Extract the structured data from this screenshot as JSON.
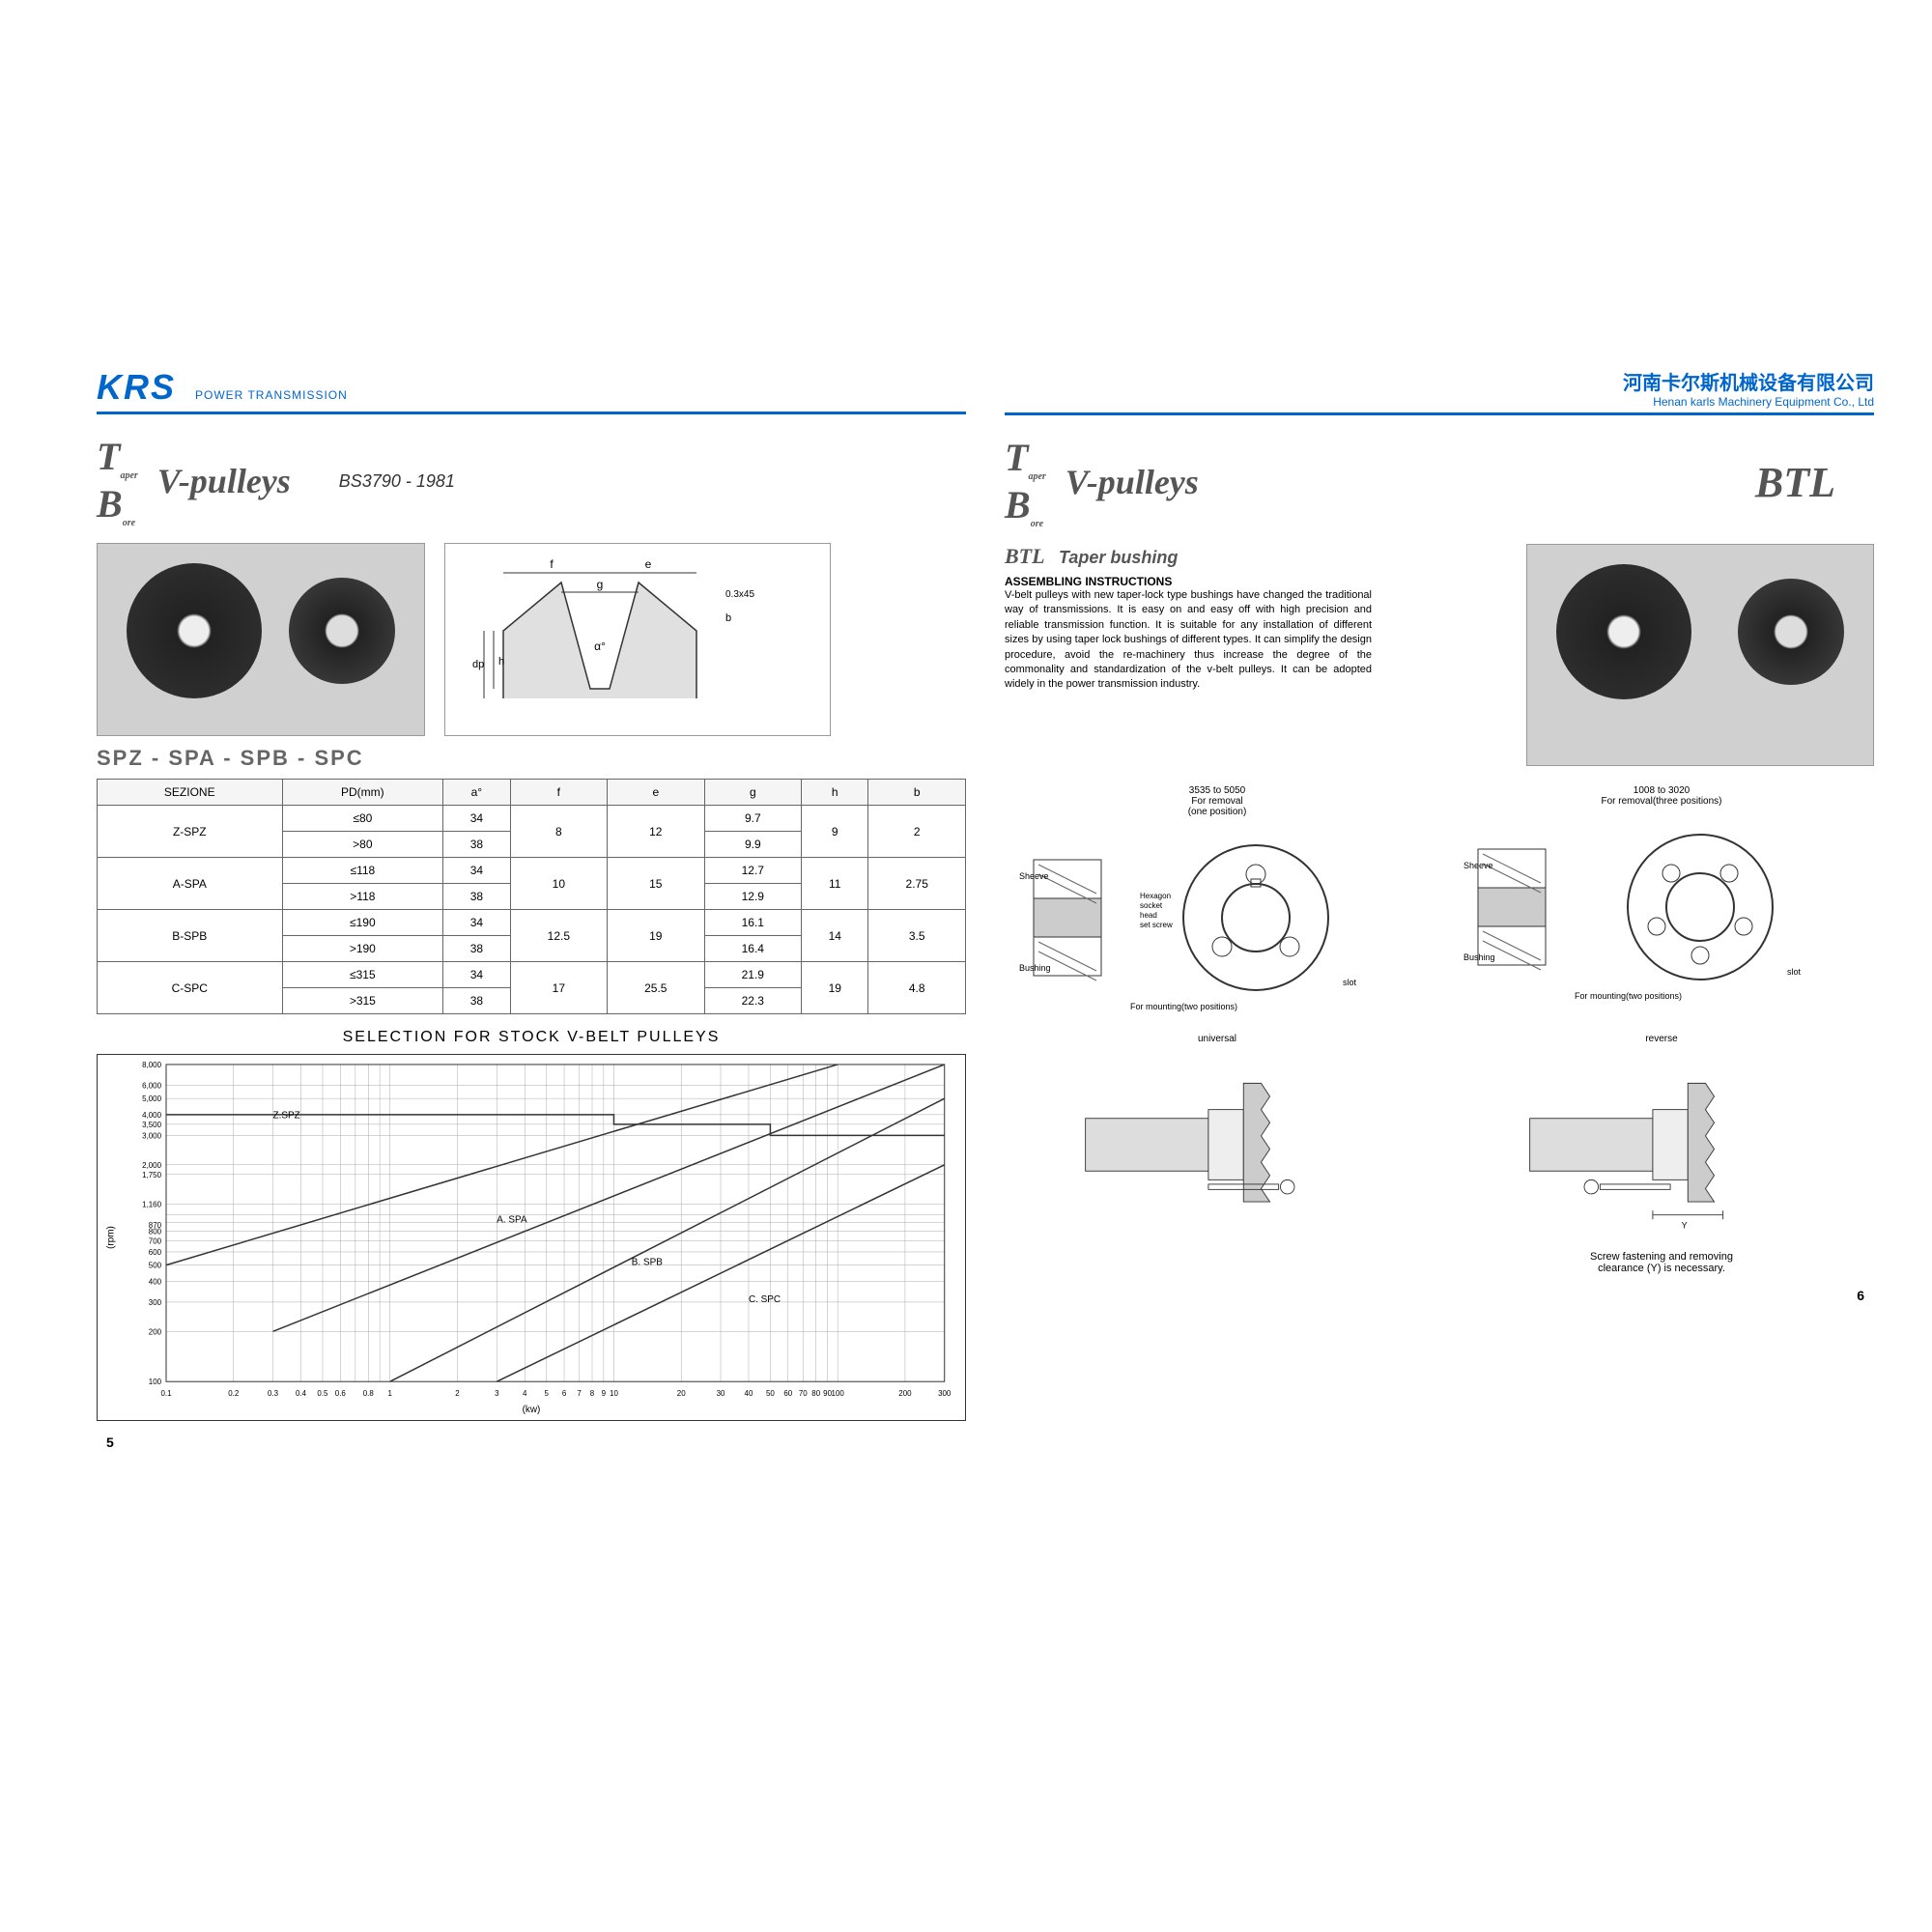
{
  "header": {
    "logo": "KRS",
    "logo_sub": "POWER TRANSMISSION",
    "company_cn": "河南卡尔斯机械设备有限公司",
    "company_en": "Henan karls Machinery Equipment Co., Ltd"
  },
  "left": {
    "tb": "TB",
    "title": "V-pulleys",
    "spec": "BS3790 - 1981",
    "spz_line": "SPZ - SPA - SPB - SPC",
    "table": {
      "headers": [
        "SEZIONE",
        "PD(mm)",
        "a°",
        "f",
        "e",
        "g",
        "h",
        "b"
      ],
      "rows": [
        [
          "Z-SPZ",
          "≤80",
          "34",
          "8",
          "12",
          "9.7",
          "9",
          "2"
        ],
        [
          "",
          ">80",
          "38",
          "",
          "",
          "9.9",
          "",
          ""
        ],
        [
          "A-SPA",
          "≤118",
          "34",
          "10",
          "15",
          "12.7",
          "11",
          "2.75"
        ],
        [
          "",
          ">118",
          "38",
          "",
          "",
          "12.9",
          "",
          ""
        ],
        [
          "B-SPB",
          "≤190",
          "34",
          "12.5",
          "19",
          "16.1",
          "14",
          "3.5"
        ],
        [
          "",
          ">190",
          "38",
          "",
          "",
          "16.4",
          "",
          ""
        ],
        [
          "C-SPC",
          "≤315",
          "34",
          "17",
          "25.5",
          "21.9",
          "19",
          "4.8"
        ],
        [
          "",
          ">315",
          "38",
          "",
          "",
          "22.3",
          "",
          ""
        ]
      ],
      "rowspans": [
        [
          0,
          2
        ],
        [
          2,
          2
        ],
        [
          4,
          2
        ],
        [
          6,
          2
        ]
      ]
    },
    "chart_title": "SELECTION FOR STOCK V-BELT PULLEYS",
    "chart": {
      "xlabel": "(kw)",
      "ylabel": "(rpm)",
      "x_ticks": [
        "0.1",
        "0.2",
        "0.3",
        "0.4",
        "0.5",
        "0.6",
        "0.8",
        "1",
        "2",
        "3",
        "4",
        "5",
        "6",
        "7",
        "8",
        "9",
        "10",
        "20",
        "30",
        "40",
        "50",
        "60",
        "70",
        "80",
        "90",
        "100",
        "200",
        "300"
      ],
      "y_ticks": [
        "100",
        "200",
        "300",
        "400",
        "500",
        "600",
        "700",
        "800",
        "870",
        "1,160",
        "1,750",
        "2,000",
        "3,000",
        "3,500",
        "4,000",
        "5,000",
        "6,000",
        "8,000"
      ],
      "regions": [
        "Z.SPZ",
        "A. SPA",
        "B. SPB",
        "C. SPC"
      ],
      "grid_color": "#888",
      "line_color": "#333"
    },
    "page_num": "5",
    "profile_labels": [
      "f",
      "e",
      "g",
      "0.3x45",
      "b",
      "dp",
      "h",
      "α°"
    ]
  },
  "right": {
    "tb": "TB",
    "title": "V-pulleys",
    "btl": "BTL",
    "btl_sub": "BTL",
    "taper": "Taper bushing",
    "assem_title": "ASSEMBLING INSTRUCTIONS",
    "assem_body": "V-belt pulleys with new taper-lock type bushings have changed the traditional way of transmissions. It is easy on and easy off with high precision and reliable transmission function. It is suitable for any installation of different sizes by using taper lock bushings of different types. It can simplify the design procedure, avoid the re-machinery thus increase the degree of the commonality and standardization of the v-belt pulleys. It can be adopted widely in the power transmission industry.",
    "diag1": {
      "top": "3535 to 5050\nFor removal\n(one position)",
      "labels": [
        "Sheeve",
        "Hexagon socket head set screw",
        "Bushing",
        "slot",
        "For mounting(two positions)"
      ]
    },
    "diag2": {
      "top": "1008 to 3020\nFor removal(three positions)",
      "labels": [
        "Sheeve",
        "Bushing",
        "slot",
        "For mounting(two positions)"
      ]
    },
    "universal": "universal",
    "reverse": "reverse",
    "bottom_note": "Screw fastening and removing\nclearance (Y) is necessary.",
    "page_num": "6"
  },
  "colors": {
    "brand": "#0066cc",
    "text": "#333333",
    "gray": "#666666",
    "border": "#666666"
  }
}
